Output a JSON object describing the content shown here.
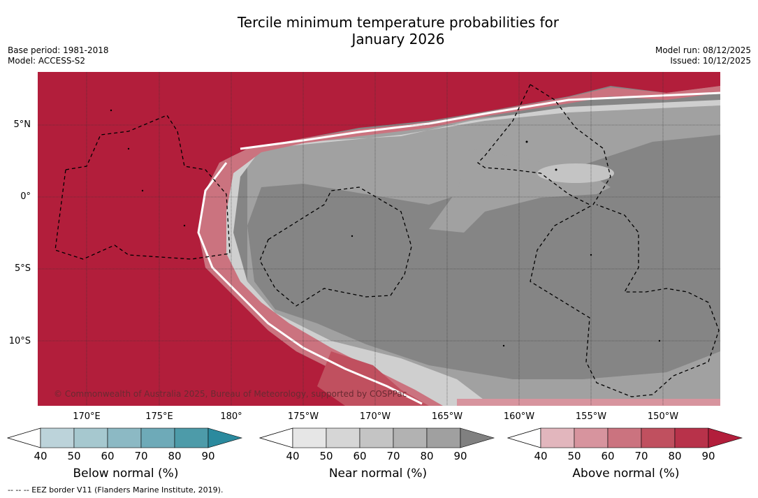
{
  "title_line1": "Tercile minimum temperature probabilities for",
  "title_line2": "January 2026",
  "base_period": "Base period: 1981-2018",
  "model": "Model: ACCESS-S2",
  "model_run": "Model run: 08/12/2025",
  "issued": "Issued: 10/12/2025",
  "copyright": "© Commonwealth of Australia 2025, Bureau of Meteorology, supported by COSPPac",
  "lat_labels": [
    "5°N",
    "0°",
    "5°S",
    "10°S"
  ],
  "lon_labels": [
    "170°E",
    "175°E",
    "180°",
    "175°W",
    "170°W",
    "165°W",
    "160°W",
    "155°W",
    "150°W"
  ],
  "colorbars": [
    {
      "title": "Below normal (%)",
      "ticks": [
        "40",
        "50",
        "60",
        "70",
        "80",
        "90"
      ],
      "colors": [
        "#bcd3da",
        "#a6c8cf",
        "#8cb9c4",
        "#6eaab8",
        "#4d9ba9",
        "#2b8a9e"
      ]
    },
    {
      "title": "Near normal (%)",
      "ticks": [
        "40",
        "50",
        "60",
        "70",
        "80",
        "90"
      ],
      "colors": [
        "#e6e6e6",
        "#d6d6d6",
        "#c4c4c4",
        "#b2b2b2",
        "#a0a0a0",
        "#808080"
      ]
    },
    {
      "title": "Above normal (%)",
      "ticks": [
        "40",
        "50",
        "60",
        "70",
        "80",
        "90"
      ],
      "colors": [
        "#e2b6bd",
        "#d7949e",
        "#cb737f",
        "#c0505f",
        "#b8324a",
        "#b21e3b"
      ]
    }
  ],
  "footnote": "--  --  -- EEZ border V11 (Flanders Marine Institute, 2019)."
}
